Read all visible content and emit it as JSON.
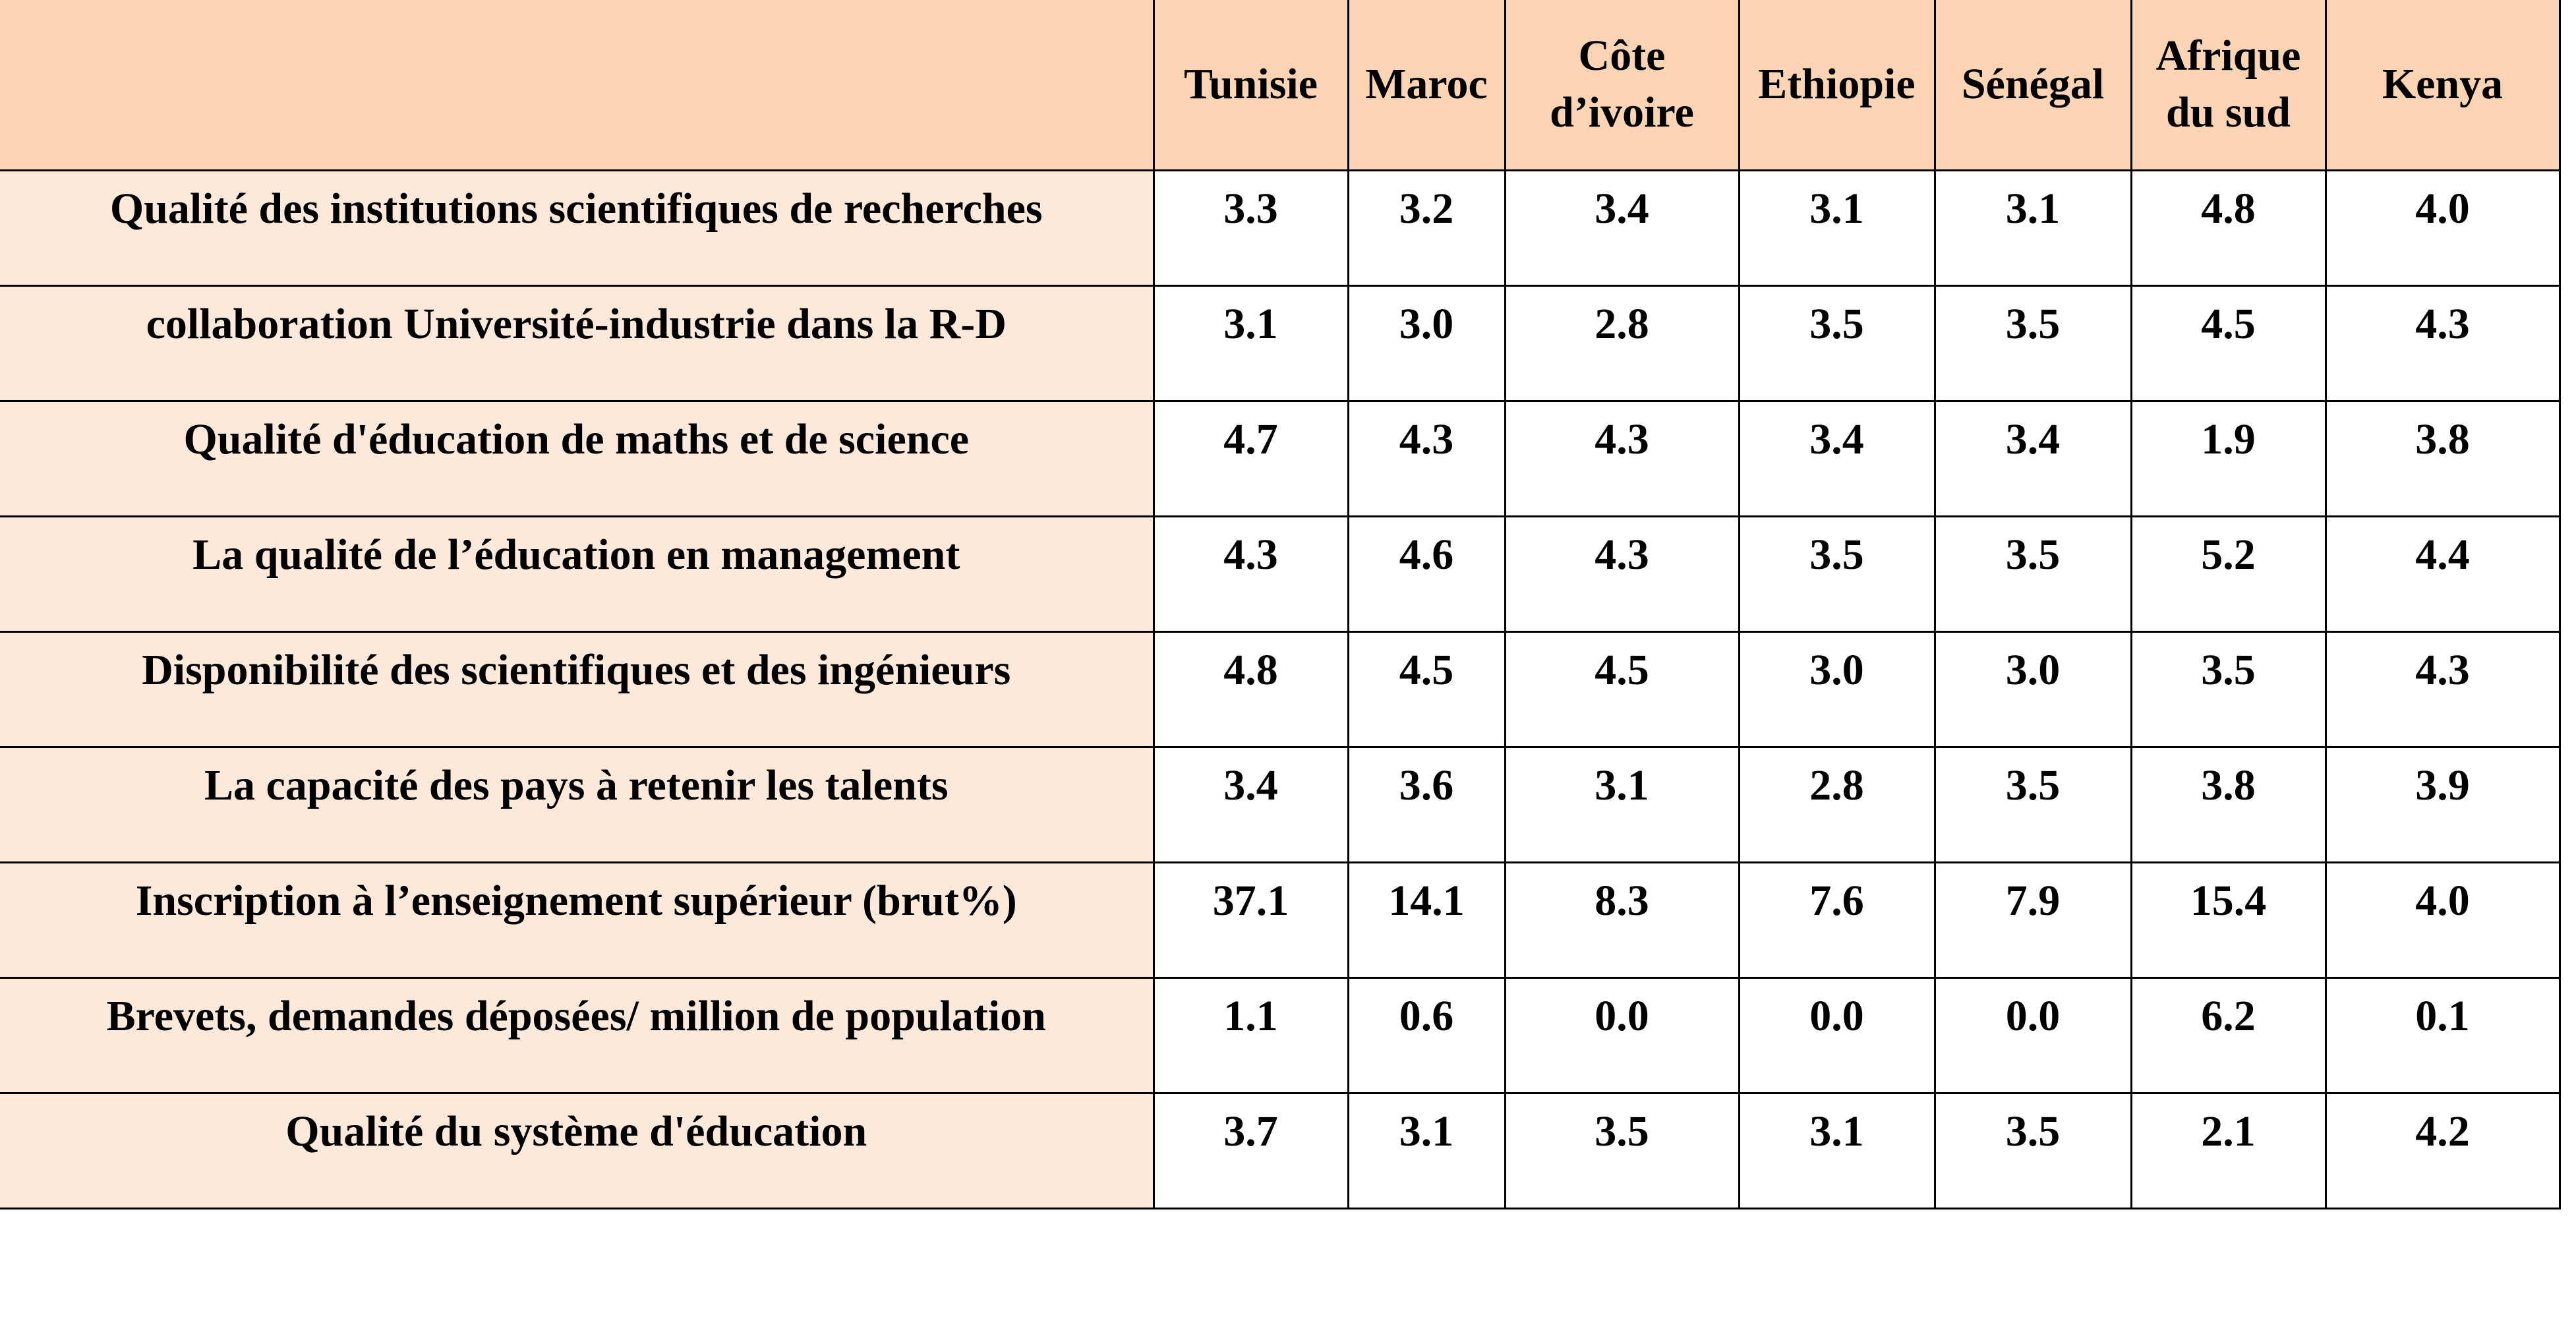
{
  "table": {
    "columns": [
      "",
      "Tunisie",
      "Maroc",
      "Côte d’ivoire",
      "Ethiopie",
      "Sénégal",
      "Afrique du  sud",
      "Kenya"
    ],
    "rows": [
      [
        "Qualité des institutions scientifiques de recherches",
        "3.3",
        "3.2",
        "3.4",
        "3.1",
        "3.1",
        "4.8",
        "4.0"
      ],
      [
        "collaboration Université-industrie dans la R-D",
        "3.1",
        "3.0",
        "2.8",
        "3.5",
        "3.5",
        "4.5",
        "4.3"
      ],
      [
        "Qualité d'éducation de maths et de science",
        "4.7",
        "4.3",
        "4.3",
        "3.4",
        "3.4",
        "1.9",
        "3.8"
      ],
      [
        "La qualité de l’éducation en management",
        "4.3",
        "4.6",
        "4.3",
        "3.5",
        "3.5",
        "5.2",
        "4.4"
      ],
      [
        "Disponibilité des scientifiques et des ingénieurs",
        "4.8",
        "4.5",
        "4.5",
        "3.0",
        "3.0",
        "3.5",
        "4.3"
      ],
      [
        "La capacité des pays à retenir les talents",
        "3.4",
        "3.6",
        "3.1",
        "2.8",
        "3.5",
        "3.8",
        "3.9"
      ],
      [
        "Inscription à l’enseignement supérieur (brut%)",
        "37.1",
        "14.1",
        "8.3",
        "7.6",
        "7.9",
        "15.4",
        "4.0"
      ],
      [
        "Brevets, demandes déposées/ million de population",
        "1.1",
        "0.6",
        "0.0",
        "0.0",
        "0.0",
        "6.2",
        "0.1"
      ],
      [
        "Qualité du système d'éducation",
        "3.7",
        "3.1",
        "3.5",
        "3.1",
        "3.5",
        "2.1",
        "4.2"
      ]
    ]
  }
}
